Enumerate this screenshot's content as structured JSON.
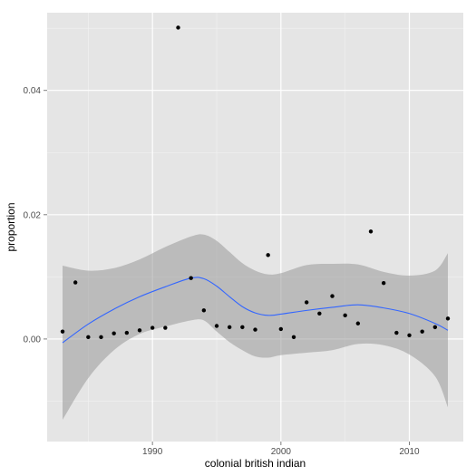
{
  "chart_data": {
    "type": "scatter",
    "title": "",
    "xlabel": "colonial british indian",
    "ylabel": "proportion",
    "xlim": [
      1981.8,
      2014.2
    ],
    "ylim": [
      -0.0165,
      0.0525
    ],
    "x_ticks": [
      1990,
      2000,
      2010
    ],
    "y_ticks": [
      0.0,
      0.02,
      0.04
    ],
    "x_tick_labels": [
      "1990",
      "2000",
      "2010"
    ],
    "y_tick_labels": [
      "0.00",
      "0.02",
      "0.04"
    ],
    "grid": true,
    "colors": {
      "panel": "#e5e5e5",
      "grid_major": "#ffffff",
      "grid_minor": "#f2f2f2",
      "points": "#000000",
      "smooth_line": "#3366ff",
      "ribbon": "#999999",
      "tick": "#7f7f7f"
    },
    "points": {
      "x": [
        1983,
        1984,
        1985,
        1986,
        1987,
        1988,
        1989,
        1990,
        1991,
        1992,
        1993,
        1994,
        1995,
        1996,
        1997,
        1998,
        1999,
        2000,
        2001,
        2002,
        2003,
        2004,
        2005,
        2006,
        2007,
        2008,
        2009,
        2010,
        2011,
        2012,
        2013
      ],
      "y": [
        0.0012,
        0.0091,
        0.0003,
        0.0003,
        0.0009,
        0.001,
        0.0014,
        0.0018,
        0.0018,
        0.0501,
        0.0098,
        0.0046,
        0.0021,
        0.0019,
        0.0019,
        0.0015,
        0.0135,
        0.0016,
        0.0003,
        0.0059,
        0.0041,
        0.0069,
        0.0038,
        0.0025,
        0.0173,
        0.009,
        0.001,
        0.0006,
        0.0012,
        0.0019,
        0.0033
      ]
    },
    "smooth": {
      "x": [
        1983,
        1985,
        1987,
        1989,
        1991,
        1993,
        1994,
        1995,
        1996,
        1997,
        1998,
        1999,
        2000,
        2002,
        2004,
        2006,
        2008,
        2010,
        2012,
        2013
      ],
      "y": [
        -0.0006,
        0.0024,
        0.0048,
        0.0068,
        0.0084,
        0.0098,
        0.0097,
        0.0085,
        0.0068,
        0.0052,
        0.0042,
        0.0038,
        0.004,
        0.0046,
        0.0051,
        0.0055,
        0.005,
        0.0041,
        0.0025,
        0.0014
      ],
      "upper": [
        0.0118,
        0.011,
        0.0114,
        0.0128,
        0.0148,
        0.0165,
        0.0168,
        0.0158,
        0.014,
        0.0122,
        0.011,
        0.0104,
        0.0106,
        0.0119,
        0.0121,
        0.012,
        0.0108,
        0.0102,
        0.011,
        0.0138
      ],
      "lower": [
        -0.013,
        -0.0063,
        -0.0018,
        0.0008,
        0.002,
        0.003,
        0.003,
        0.0012,
        -0.0005,
        -0.0018,
        -0.0028,
        -0.003,
        -0.0026,
        -0.0022,
        -0.0018,
        -0.0008,
        -0.001,
        -0.0025,
        -0.006,
        -0.011
      ]
    }
  }
}
